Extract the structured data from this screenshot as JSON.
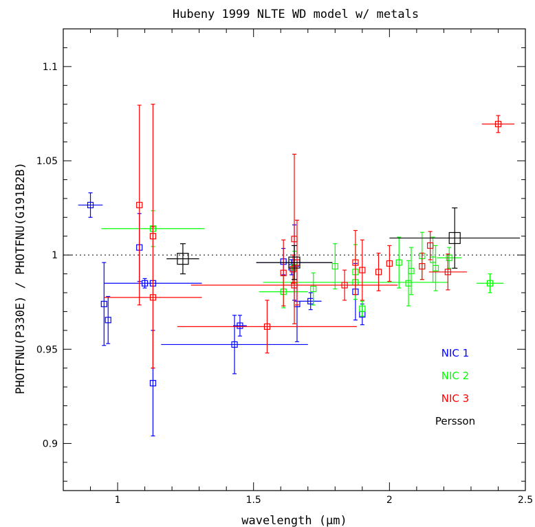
{
  "chart_data": {
    "type": "scatter",
    "title": "Hubeny 1999 NLTE WD model w/ metals",
    "xlabel": "wavelength (μm)",
    "ylabel": "PHOTFNU(P330E) / PHOTFNU(G191B2B)",
    "xlim": [
      0.8,
      2.5
    ],
    "ylim": [
      0.875,
      1.12
    ],
    "x_ticks": [
      1,
      1.5,
      2,
      2.5
    ],
    "x_tick_labels": [
      "1",
      "1.5",
      "2",
      "2.5"
    ],
    "y_ticks": [
      0.9,
      0.95,
      1,
      1.05,
      1.1
    ],
    "y_tick_labels": [
      "0.9",
      "0.95",
      "1",
      "1.05",
      "1.1"
    ],
    "reference_line": 1.0,
    "legend_position": "bottom-right",
    "series": [
      {
        "name": "NIC 1",
        "color": "#0000ff",
        "points": [
          {
            "x": 0.9,
            "y": 1.0265,
            "xerr": 0.045,
            "yerr": 0.0065
          },
          {
            "x": 0.95,
            "y": 0.974,
            "xerr": 0.0,
            "yerr": 0.022
          },
          {
            "x": 0.965,
            "y": 0.9655,
            "xerr": 0.0,
            "yerr": 0.0125
          },
          {
            "x": 1.08,
            "y": 1.004,
            "xerr": 0.0,
            "yerr": 0.018
          },
          {
            "x": 1.1,
            "y": 0.985,
            "xerr": 0.0,
            "yerr": 0.0025
          },
          {
            "x": 1.13,
            "y": 0.985,
            "xerr": 0.18,
            "yerr": 0.0
          },
          {
            "x": 1.13,
            "y": 0.932,
            "xerr": 0.0,
            "yerr": 0.028
          },
          {
            "x": 1.43,
            "y": 0.9525,
            "xerr": 0.27,
            "yerr": 0.0155
          },
          {
            "x": 1.45,
            "y": 0.9625,
            "xerr": 0.025,
            "yerr": 0.0055
          },
          {
            "x": 1.61,
            "y": 0.9965,
            "xerr": 0.0,
            "yerr": 0.007
          },
          {
            "x": 1.64,
            "y": 0.9935,
            "xerr": 0.0,
            "yerr": 0.004
          },
          {
            "x": 1.65,
            "y": 0.996,
            "xerr": 0.14,
            "yerr": 0.02
          },
          {
            "x": 1.66,
            "y": 0.974,
            "xerr": 0.0,
            "yerr": 0.02
          },
          {
            "x": 1.71,
            "y": 0.9755,
            "xerr": 0.04,
            "yerr": 0.0045
          },
          {
            "x": 1.875,
            "y": 0.9805,
            "xerr": 0.0,
            "yerr": 0.015
          },
          {
            "x": 1.9,
            "y": 0.9685,
            "xerr": 0.0,
            "yerr": 0.0055
          }
        ]
      },
      {
        "name": "NIC 2",
        "color": "#00ff00",
        "points": [
          {
            "x": 1.13,
            "y": 1.014,
            "xerr": 0.19,
            "yerr": 0.0095
          },
          {
            "x": 1.61,
            "y": 0.9805,
            "xerr": 0.09,
            "yerr": 0.0085
          },
          {
            "x": 1.65,
            "y": 0.9935,
            "xerr": 0.0,
            "yerr": 0.0085
          },
          {
            "x": 1.72,
            "y": 0.982,
            "xerr": 0.0,
            "yerr": 0.0085
          },
          {
            "x": 1.8,
            "y": 0.994,
            "xerr": 0.0,
            "yerr": 0.012
          },
          {
            "x": 1.875,
            "y": 0.991,
            "xerr": 0.0,
            "yerr": 0.0145
          },
          {
            "x": 1.875,
            "y": 0.9855,
            "xerr": 0.34,
            "yerr": 0.0
          },
          {
            "x": 1.9,
            "y": 0.9715,
            "xerr": 0.0,
            "yerr": 0.004
          },
          {
            "x": 2.035,
            "y": 0.996,
            "xerr": 0.0,
            "yerr": 0.0135
          },
          {
            "x": 2.07,
            "y": 0.985,
            "xerr": 0.0,
            "yerr": 0.012
          },
          {
            "x": 2.08,
            "y": 0.9915,
            "xerr": 0.0,
            "yerr": 0.0125
          },
          {
            "x": 2.12,
            "y": 0.9995,
            "xerr": 0.0,
            "yerr": 0.0125
          },
          {
            "x": 2.16,
            "y": 0.9975,
            "xerr": 0.0,
            "yerr": 0.012
          },
          {
            "x": 2.17,
            "y": 0.993,
            "xerr": 0.0,
            "yerr": 0.012
          },
          {
            "x": 2.22,
            "y": 0.9985,
            "xerr": 0.045,
            "yerr": 0.0055
          },
          {
            "x": 2.37,
            "y": 0.985,
            "xerr": 0.05,
            "yerr": 0.005
          }
        ]
      },
      {
        "name": "NIC 3",
        "color": "#ff0000",
        "points": [
          {
            "x": 1.08,
            "y": 1.0265,
            "xerr": 0.0,
            "yerr": 0.053
          },
          {
            "x": 1.13,
            "y": 1.01,
            "xerr": 0.0,
            "yerr": 0.07
          },
          {
            "x": 1.13,
            "y": 0.9775,
            "xerr": 0.18,
            "yerr": 0.0375
          },
          {
            "x": 1.55,
            "y": 0.962,
            "xerr": 0.33,
            "yerr": 0.014
          },
          {
            "x": 1.61,
            "y": 0.9905,
            "xerr": 0.0,
            "yerr": 0.0175
          },
          {
            "x": 1.645,
            "y": 0.9925,
            "xerr": 0.0,
            "yerr": 0.0075
          },
          {
            "x": 1.65,
            "y": 1.0085,
            "xerr": 0.0,
            "yerr": 0.045
          },
          {
            "x": 1.66,
            "y": 0.996,
            "xerr": 0.0,
            "yerr": 0.0225
          },
          {
            "x": 1.65,
            "y": 0.984,
            "xerr": 0.38,
            "yerr": 0.0
          },
          {
            "x": 1.835,
            "y": 0.984,
            "xerr": 0.0,
            "yerr": 0.008
          },
          {
            "x": 1.875,
            "y": 0.996,
            "xerr": 0.0,
            "yerr": 0.017
          },
          {
            "x": 1.9,
            "y": 0.992,
            "xerr": 0.0,
            "yerr": 0.016
          },
          {
            "x": 1.96,
            "y": 0.991,
            "xerr": 0.0,
            "yerr": 0.01
          },
          {
            "x": 2.0,
            "y": 0.9955,
            "xerr": 0.0,
            "yerr": 0.0095
          },
          {
            "x": 2.12,
            "y": 0.994,
            "xerr": 0.0,
            "yerr": 0.007
          },
          {
            "x": 2.15,
            "y": 1.005,
            "xerr": 0.0,
            "yerr": 0.0075
          },
          {
            "x": 2.215,
            "y": 0.991,
            "xerr": 0.07,
            "yerr": 0.0095
          },
          {
            "x": 2.4,
            "y": 1.0695,
            "xerr": 0.06,
            "yerr": 0.0045
          }
        ]
      },
      {
        "name": "Persson",
        "color": "#000000",
        "points": [
          {
            "x": 1.24,
            "y": 0.998,
            "xerr": 0.06,
            "yerr": 0.008
          },
          {
            "x": 1.65,
            "y": 0.996,
            "xerr": 0.14,
            "yerr": 0.009
          },
          {
            "x": 2.24,
            "y": 1.009,
            "xerr": 0.24,
            "yerr": 0.016
          }
        ]
      }
    ]
  }
}
